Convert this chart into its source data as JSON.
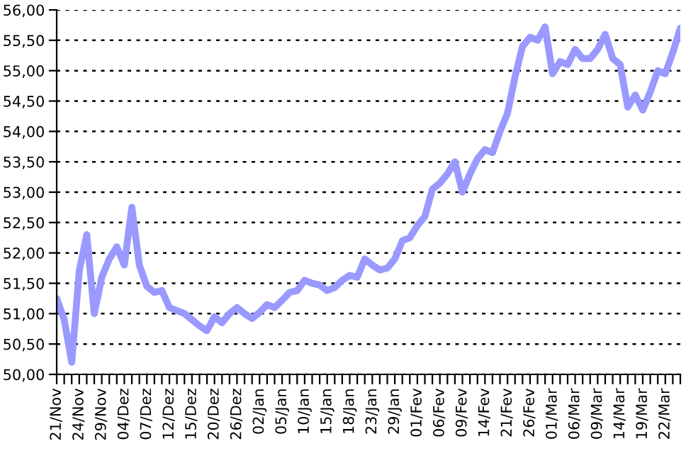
{
  "chart_data": {
    "type": "line",
    "categories": [
      "21/Nov",
      null,
      null,
      "24/Nov",
      null,
      null,
      "29/Nov",
      null,
      null,
      "04/Dez",
      null,
      null,
      "07/Dez",
      null,
      null,
      "12/Dez",
      null,
      null,
      "15/Dez",
      null,
      null,
      "20/Dez",
      null,
      null,
      "26/Dez",
      null,
      null,
      "02/Jan",
      null,
      null,
      "05/Jan",
      null,
      null,
      "10/Jan",
      null,
      null,
      "15/Jan",
      null,
      null,
      "18/Jan",
      null,
      null,
      "23/Jan",
      null,
      null,
      "29/Jan",
      null,
      null,
      "01/Fev",
      null,
      null,
      "06/Fev",
      null,
      null,
      "09/Fev",
      null,
      null,
      "14/Fev",
      null,
      null,
      "21/Fev",
      null,
      null,
      "26/Fev",
      null,
      null,
      "01/Mar",
      null,
      null,
      "06/Mar",
      null,
      null,
      "09/Mar",
      null,
      null,
      "14/Mar",
      null,
      null,
      "19/Mar",
      null,
      null,
      "22/Mar",
      null,
      null
    ],
    "series": [
      {
        "color": "#9999ff",
        "values": [
          51.25,
          50.9,
          50.2,
          51.7,
          52.3,
          51.0,
          51.6,
          51.9,
          52.1,
          51.8,
          52.75,
          51.8,
          51.45,
          51.35,
          51.38,
          51.1,
          51.05,
          51.0,
          50.9,
          50.8,
          50.72,
          50.95,
          50.85,
          51.0,
          51.1,
          51.0,
          50.92,
          51.02,
          51.15,
          51.1,
          51.22,
          51.35,
          51.38,
          51.55,
          51.5,
          51.47,
          51.38,
          51.43,
          51.55,
          51.63,
          51.6,
          51.9,
          51.8,
          51.72,
          51.75,
          51.9,
          52.2,
          52.25,
          52.45,
          52.6,
          53.05,
          53.15,
          53.3,
          53.5,
          53.0,
          53.3,
          53.55,
          53.7,
          53.65,
          54.0,
          54.3,
          54.9,
          55.4,
          55.55,
          55.5,
          55.72,
          54.95,
          55.15,
          55.1,
          55.35,
          55.2,
          55.2,
          55.35,
          55.6,
          55.2,
          55.1,
          54.4,
          54.6,
          54.35,
          54.65,
          55.0,
          54.95,
          55.3,
          55.7
        ]
      }
    ],
    "ylim": [
      50,
      56
    ],
    "yticks": [
      {
        "value": 50,
        "label": "50,00"
      },
      {
        "value": 50.5,
        "label": "50,50"
      },
      {
        "value": 51,
        "label": "51,00"
      },
      {
        "value": 51.5,
        "label": "51,50"
      },
      {
        "value": 52,
        "label": "52,00"
      },
      {
        "value": 52.5,
        "label": "52,50"
      },
      {
        "value": 53,
        "label": "53,00"
      },
      {
        "value": 53.5,
        "label": "53,50"
      },
      {
        "value": 54,
        "label": "54,00"
      },
      {
        "value": 54.5,
        "label": "54,50"
      },
      {
        "value": 55,
        "label": "55,00"
      },
      {
        "value": 55.5,
        "label": "55,50"
      },
      {
        "value": 56,
        "label": "56,00"
      }
    ],
    "grid": "y",
    "marker": "none",
    "line_style": "solid"
  }
}
